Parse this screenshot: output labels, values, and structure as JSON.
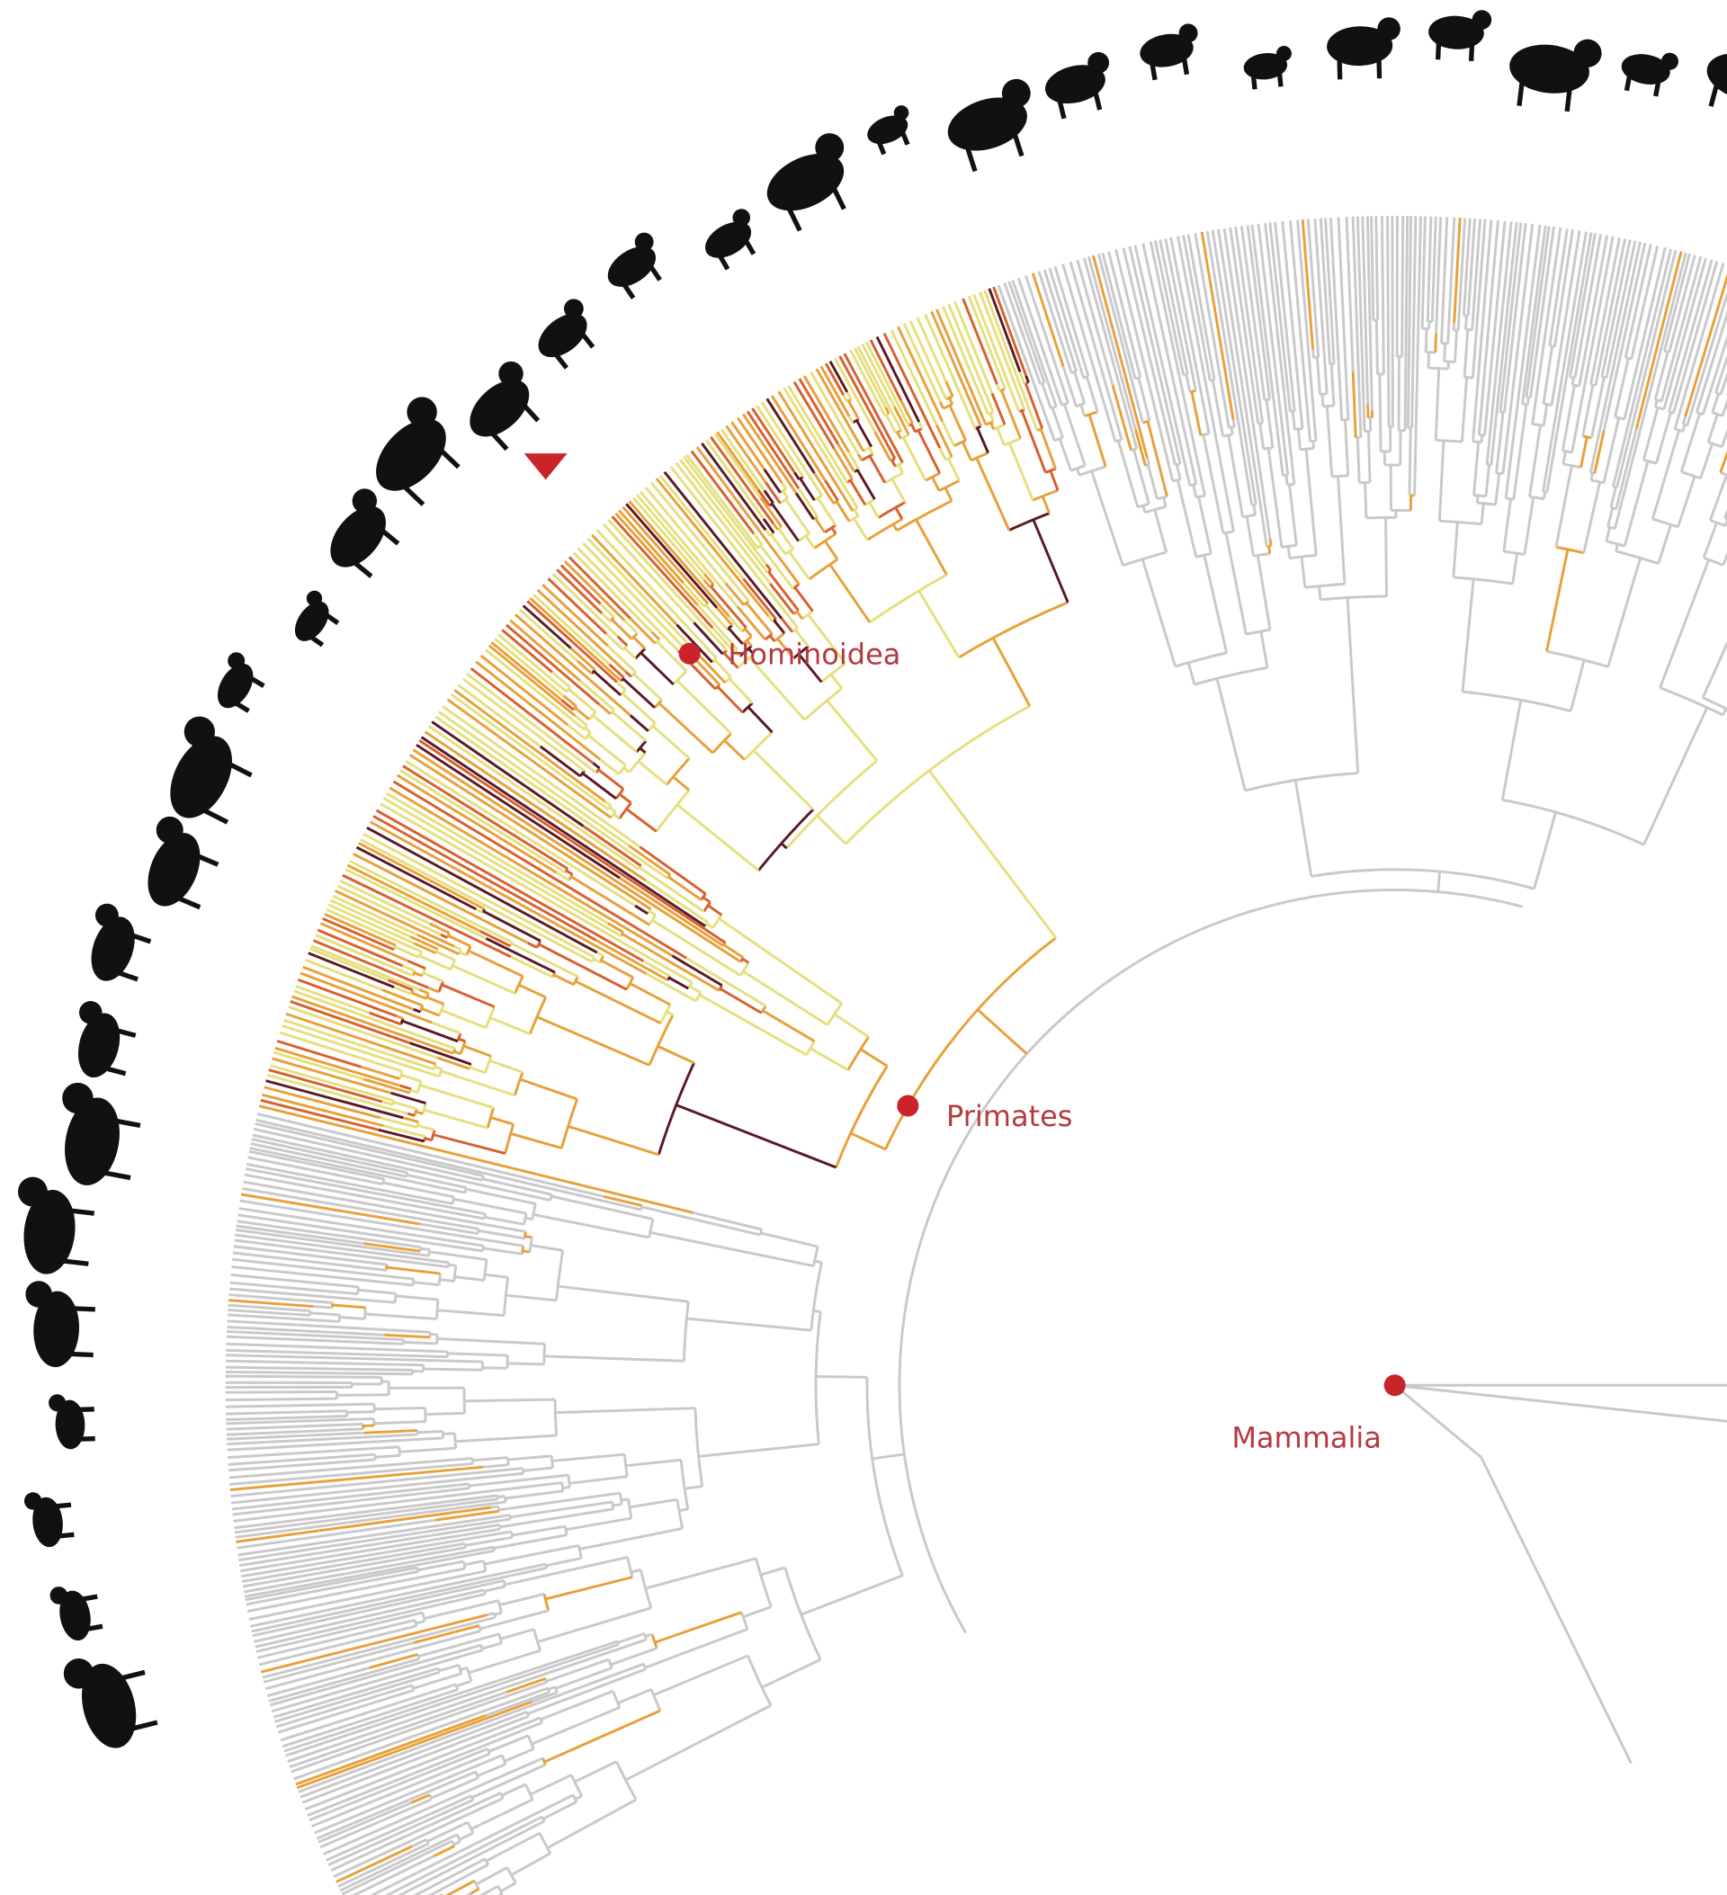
{
  "nodes": [
    {
      "label": "Hominoidea"
    },
    {
      "label": "Primates"
    },
    {
      "label": "Mammalia"
    }
  ]
}
